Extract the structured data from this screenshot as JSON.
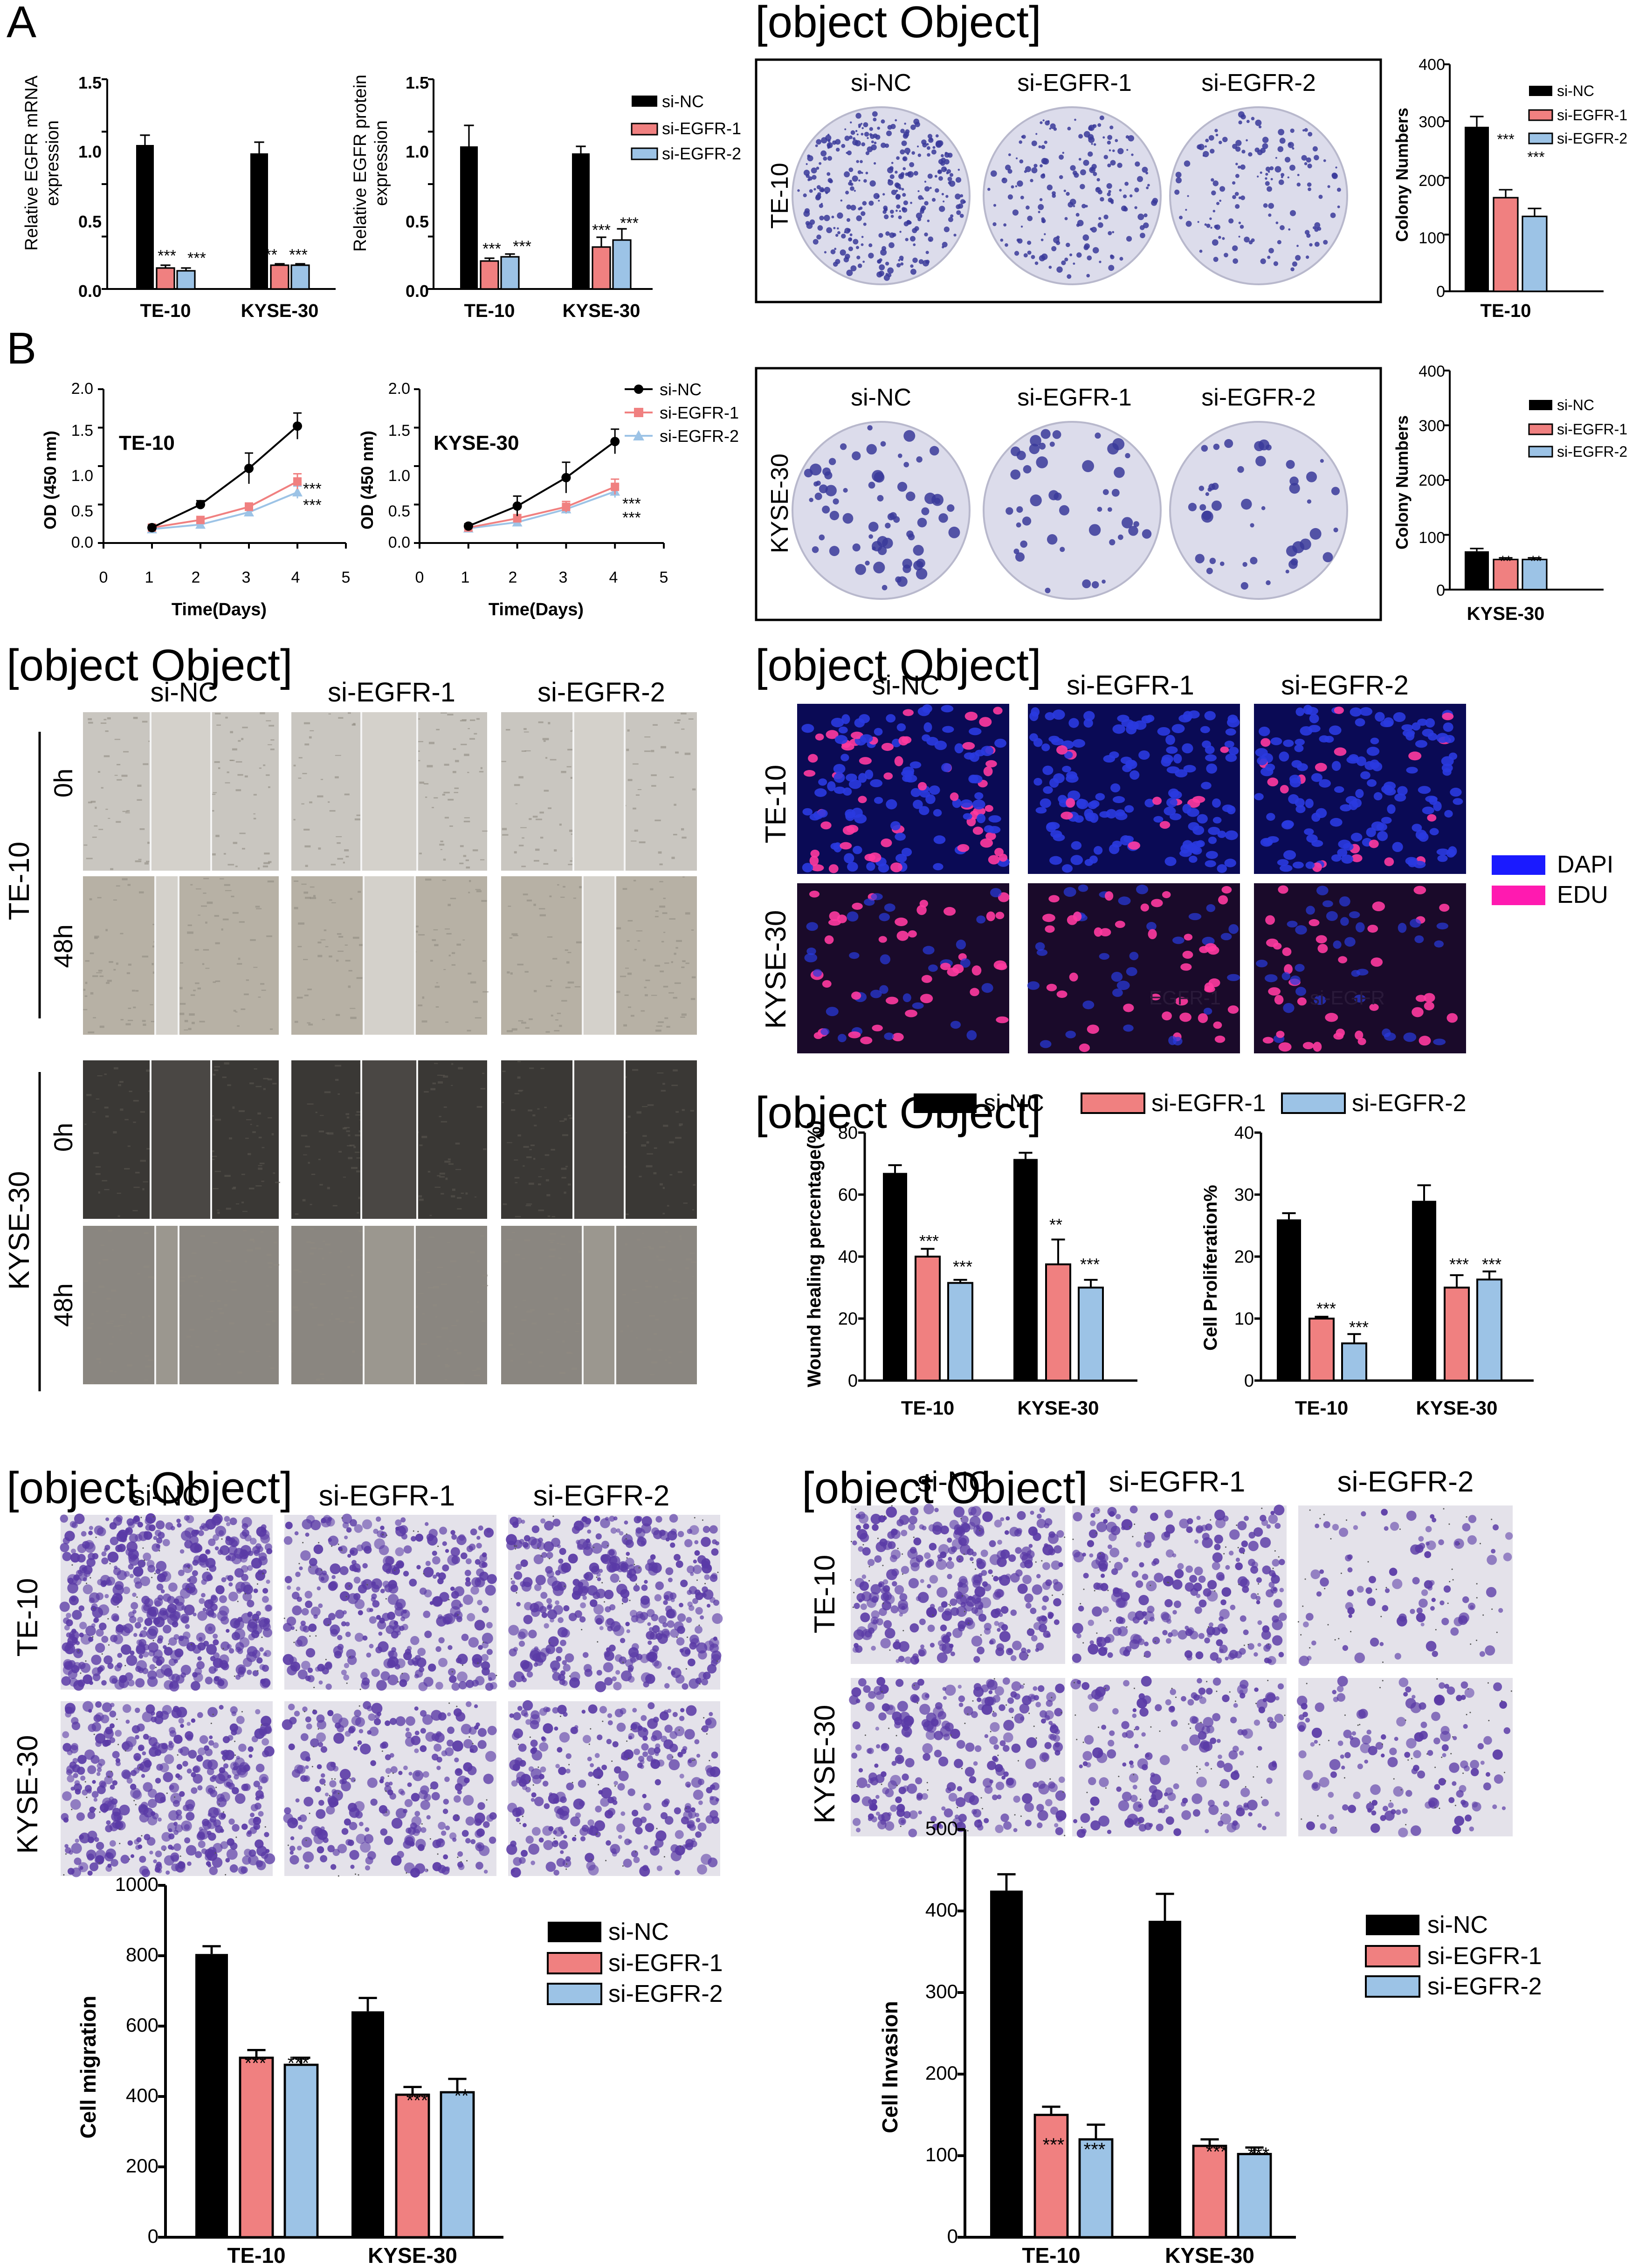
{
  "colors": {
    "si_nc": "#000000",
    "si_egfr1": "#f08080",
    "si_egfr2": "#9cc3e6",
    "dapi": "#1a1aff",
    "edu": "#ff1ab0",
    "dish": "#dcdceb",
    "colony": "#3a3a9a",
    "wound_light": "#c9c6c0",
    "wound_dark": "#3a3835",
    "stain_bg": "#e4e2ea",
    "stain": "#5a3aa6",
    "if_nuclei_blue": "#2a3ae0",
    "if_nuclei_pink": "#ff3aa0",
    "if_bg_blue": "#0a0a55",
    "if_bg_dark": "#1a0a2a"
  },
  "panels": {
    "A": "A",
    "B": "B",
    "C": {
      "cols": [
        "si-NC",
        "si-EGFR-1",
        "si-EGFR-2"
      ],
      "rows": [
        "TE-10",
        "KYSE-30"
      ],
      "ylabel": "Colony Numbers",
      "ticks1": [
        "0",
        "100",
        "200",
        "300",
        "400"
      ],
      "ticks2": [
        "0",
        "100",
        "200",
        "300",
        "400"
      ],
      "cat1": "TE-10",
      "cat2": "KYSE-30",
      "sig1": [
        "***",
        "***"
      ],
      "sig2": [
        "**",
        "**"
      ]
    },
    "D": {
      "cols": [
        "si-NC",
        "si-EGFR-1",
        "si-EGFR-2"
      ],
      "rows": [
        "TE-10",
        "KYSE-30"
      ],
      "times": [
        "0h",
        "48h"
      ]
    },
    "E": {
      "cols": [
        "si-NC",
        "si-EGFR-1",
        "si-EGFR-2"
      ],
      "rows": [
        "TE-10",
        "KYSE-30"
      ],
      "legend": [
        "DAPI",
        "EDU"
      ],
      "overlay1": "EGFR-1",
      "overlay2": "si-EGFR"
    },
    "F": {
      "ylabel1": "Wound healing percentage(%)",
      "ylabel2": "Cell Proliferation%",
      "ticks1": [
        "0",
        "20",
        "40",
        "60",
        "80"
      ],
      "ticks2": [
        "0",
        "10",
        "20",
        "30",
        "40"
      ],
      "cats": [
        "TE-10",
        "KYSE-30"
      ],
      "sig1": [
        "***",
        "***",
        "**",
        "***"
      ],
      "sig2": [
        "***",
        "***",
        "***",
        "***"
      ]
    },
    "G": {
      "cols": [
        "si-NC",
        "si-EGFR-1",
        "si-EGFR-2"
      ],
      "rows": [
        "TE-10",
        "KYSE-30"
      ],
      "ylabel": "Cell migration",
      "ticks": [
        "0",
        "200",
        "400",
        "600",
        "800",
        "1000"
      ],
      "cats": [
        "TE-10",
        "KYSE-30"
      ],
      "sig": [
        "***",
        "***",
        "***",
        "**"
      ]
    },
    "H": {
      "cols": [
        "si-NC",
        "si-EGFR-1",
        "si-EGFR-2"
      ],
      "rows": [
        "TE-10",
        "KYSE-30"
      ],
      "ylabel": "Cell Invasion",
      "ticks": [
        "0",
        "100",
        "200",
        "300",
        "400",
        "500"
      ],
      "cats": [
        "TE-10",
        "KYSE-30"
      ],
      "sig": [
        "***",
        "***",
        "***",
        "***"
      ]
    },
    "A1": {
      "ylabel1": "Relative EGFR mRNA",
      "ylabel2": "expression",
      "ticks": [
        "0.0",
        "0.5",
        "1.0",
        "1.5"
      ],
      "cats": [
        "TE-10",
        "KYSE-30"
      ],
      "sig": [
        "***",
        "***",
        "***",
        "***"
      ]
    },
    "A2": {
      "ylabel1": "Relative EGFR protein",
      "ylabel2": "expression",
      "ticks": [
        "0.0",
        "0.5",
        "1.0",
        "1.5"
      ],
      "cats": [
        "TE-10",
        "KYSE-30"
      ],
      "sig": [
        "***",
        "***",
        "***",
        "***"
      ]
    },
    "legend_series": [
      "si-NC",
      "si-EGFR-1",
      "si-EGFR-2"
    ],
    "B1": {
      "title": "TE-10",
      "ylabel": "OD (450 nm)",
      "xlabel": "Time(Days)",
      "yticks": [
        "0.0",
        "0.5",
        "1.0",
        "1.5",
        "2.0"
      ],
      "xticks": [
        "0",
        "1",
        "2",
        "3",
        "4",
        "5"
      ],
      "sig": [
        "***",
        "***"
      ]
    },
    "B2": {
      "title": "KYSE-30",
      "ylabel": "OD (450 nm)",
      "xlabel": "Time(Days)",
      "yticks": [
        "0.0",
        "0.5",
        "1.0",
        "1.5",
        "2.0"
      ],
      "xticks": [
        "0",
        "1",
        "2",
        "3",
        "4",
        "5"
      ],
      "sig": [
        "***",
        "***"
      ]
    }
  },
  "chart_data": [
    {
      "id": "A1",
      "type": "bar",
      "ylabel": "Relative EGFR mRNA expression",
      "categories": [
        "TE-10",
        "KYSE-30"
      ],
      "ylim": [
        0,
        1.5
      ],
      "series": [
        {
          "name": "si-NC",
          "values": [
            1.03,
            0.97
          ],
          "err": [
            0.07,
            0.08
          ]
        },
        {
          "name": "si-EGFR-1",
          "values": [
            0.15,
            0.17
          ],
          "err": [
            0.02,
            0.01
          ]
        },
        {
          "name": "si-EGFR-2",
          "values": [
            0.13,
            0.17
          ],
          "err": [
            0.02,
            0.01
          ]
        }
      ]
    },
    {
      "id": "A2",
      "type": "bar",
      "ylabel": "Relative EGFR protein expression",
      "categories": [
        "TE-10",
        "KYSE-30"
      ],
      "ylim": [
        0,
        1.5
      ],
      "series": [
        {
          "name": "si-NC",
          "values": [
            1.02,
            0.97
          ],
          "err": [
            0.15,
            0.05
          ]
        },
        {
          "name": "si-EGFR-1",
          "values": [
            0.2,
            0.3
          ],
          "err": [
            0.02,
            0.07
          ]
        },
        {
          "name": "si-EGFR-2",
          "values": [
            0.23,
            0.35
          ],
          "err": [
            0.02,
            0.08
          ]
        }
      ]
    },
    {
      "id": "B1",
      "type": "line",
      "title": "TE-10",
      "xlabel": "Time(Days)",
      "ylabel": "OD (450 nm)",
      "xlim": [
        0,
        5
      ],
      "ylim": [
        0,
        2.0
      ],
      "x": [
        1,
        2,
        3,
        4
      ],
      "series": [
        {
          "name": "si-NC",
          "values": [
            0.2,
            0.5,
            0.97,
            1.52
          ],
          "err": [
            0.03,
            0.05,
            0.2,
            0.17
          ]
        },
        {
          "name": "si-EGFR-1",
          "values": [
            0.2,
            0.3,
            0.47,
            0.8
          ],
          "err": [
            0.03,
            0.04,
            0.05,
            0.1
          ]
        },
        {
          "name": "si-EGFR-2",
          "values": [
            0.18,
            0.24,
            0.4,
            0.66
          ],
          "err": [
            0.03,
            0.04,
            0.05,
            0.08
          ]
        }
      ]
    },
    {
      "id": "B2",
      "type": "line",
      "title": "KYSE-30",
      "xlabel": "Time(Days)",
      "ylabel": "OD (450 nm)",
      "xlim": [
        0,
        5
      ],
      "ylim": [
        0,
        2.0
      ],
      "x": [
        1,
        2,
        3,
        4
      ],
      "series": [
        {
          "name": "si-NC",
          "values": [
            0.22,
            0.48,
            0.85,
            1.32
          ],
          "err": [
            0.03,
            0.13,
            0.2,
            0.16
          ]
        },
        {
          "name": "si-EGFR-1",
          "values": [
            0.2,
            0.32,
            0.47,
            0.73
          ],
          "err": [
            0.03,
            0.05,
            0.07,
            0.1
          ]
        },
        {
          "name": "si-EGFR-2",
          "values": [
            0.19,
            0.27,
            0.44,
            0.67
          ],
          "err": [
            0.03,
            0.05,
            0.06,
            0.08
          ]
        }
      ]
    },
    {
      "id": "C1",
      "type": "bar",
      "ylabel": "Colony Numbers",
      "categories": [
        "TE-10"
      ],
      "ylim": [
        0,
        400
      ],
      "series": [
        {
          "name": "si-NC",
          "values": [
            290
          ],
          "err": [
            18
          ]
        },
        {
          "name": "si-EGFR-1",
          "values": [
            165
          ],
          "err": [
            14
          ]
        },
        {
          "name": "si-EGFR-2",
          "values": [
            132
          ],
          "err": [
            14
          ]
        }
      ]
    },
    {
      "id": "C2",
      "type": "bar",
      "ylabel": "Colony Numbers",
      "categories": [
        "KYSE-30"
      ],
      "ylim": [
        0,
        400
      ],
      "series": [
        {
          "name": "si-NC",
          "values": [
            70
          ],
          "err": [
            5
          ]
        },
        {
          "name": "si-EGFR-1",
          "values": [
            55
          ],
          "err": [
            3
          ]
        },
        {
          "name": "si-EGFR-2",
          "values": [
            55
          ],
          "err": [
            3
          ]
        }
      ]
    },
    {
      "id": "F1",
      "type": "bar",
      "ylabel": "Wound healing percentage(%)",
      "categories": [
        "TE-10",
        "KYSE-30"
      ],
      "ylim": [
        0,
        80
      ],
      "series": [
        {
          "name": "si-NC",
          "values": [
            67,
            71.5
          ],
          "err": [
            2.5,
            2
          ]
        },
        {
          "name": "si-EGFR-1",
          "values": [
            40,
            37.5
          ],
          "err": [
            2.5,
            8
          ]
        },
        {
          "name": "si-EGFR-2",
          "values": [
            31.5,
            30
          ],
          "err": [
            1,
            2.5
          ]
        }
      ]
    },
    {
      "id": "F2",
      "type": "bar",
      "ylabel": "Cell Proliferation%",
      "categories": [
        "TE-10",
        "KYSE-30"
      ],
      "ylim": [
        0,
        40
      ],
      "series": [
        {
          "name": "si-NC",
          "values": [
            26,
            29
          ],
          "err": [
            1,
            2.5
          ]
        },
        {
          "name": "si-EGFR-1",
          "values": [
            10,
            15
          ],
          "err": [
            0.3,
            2
          ]
        },
        {
          "name": "si-EGFR-2",
          "values": [
            6,
            16.3
          ],
          "err": [
            1.5,
            1.3
          ]
        }
      ]
    },
    {
      "id": "G1",
      "type": "bar",
      "ylabel": "Cell migration",
      "categories": [
        "TE-10",
        "KYSE-30"
      ],
      "ylim": [
        0,
        1000
      ],
      "series": [
        {
          "name": "si-NC",
          "values": [
            805,
            642
          ],
          "err": [
            22,
            38
          ]
        },
        {
          "name": "si-EGFR-1",
          "values": [
            510,
            405
          ],
          "err": [
            22,
            22
          ]
        },
        {
          "name": "si-EGFR-2",
          "values": [
            490,
            412
          ],
          "err": [
            20,
            38
          ]
        }
      ]
    },
    {
      "id": "H1",
      "type": "bar",
      "ylabel": "Cell Invasion",
      "categories": [
        "TE-10",
        "KYSE-30"
      ],
      "ylim": [
        0,
        500
      ],
      "series": [
        {
          "name": "si-NC",
          "values": [
            425,
            388
          ],
          "err": [
            20,
            33
          ]
        },
        {
          "name": "si-EGFR-1",
          "values": [
            150,
            112
          ],
          "err": [
            10,
            8
          ]
        },
        {
          "name": "si-EGFR-2",
          "values": [
            120,
            102
          ],
          "err": [
            18,
            8
          ]
        }
      ]
    }
  ]
}
